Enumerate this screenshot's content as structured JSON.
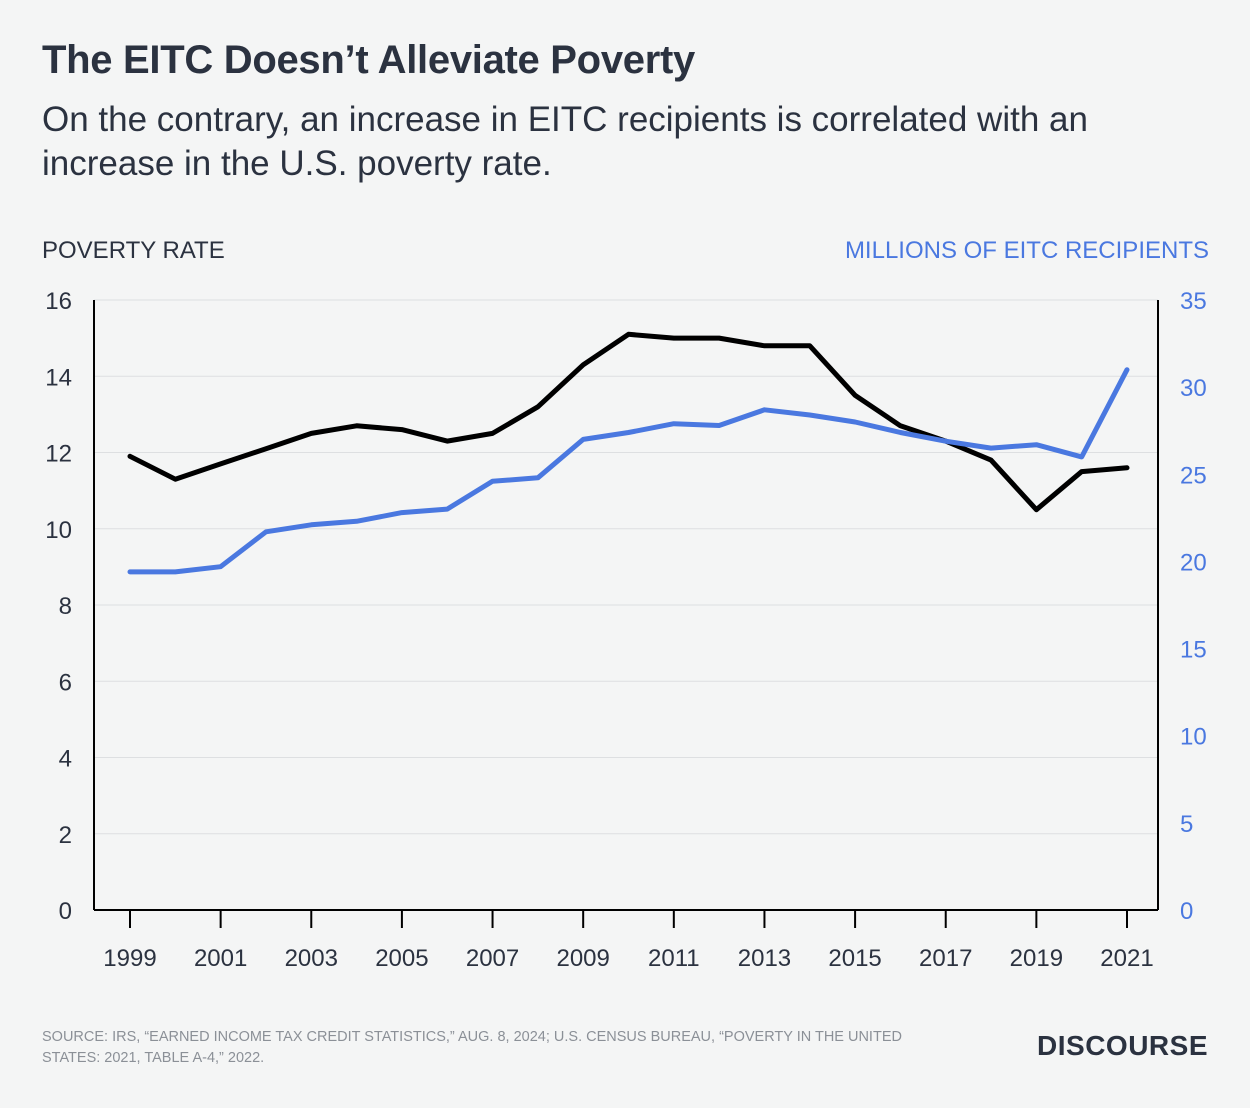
{
  "title": "The EITC Doesn’t Alleviate Poverty",
  "subtitle": "On the contrary, an increase in EITC recipients is correlated with an increase in the U.S. poverty rate.",
  "source": "SOURCE: IRS, “EARNED INCOME TAX CREDIT STATISTICS,” AUG. 8, 2024; U.S. CENSUS BUREAU, “POVERTY IN THE UNITED STATES: 2021, TABLE A-4,” 2022.",
  "brand": "DISCOURSE",
  "colors": {
    "poverty": "#000000",
    "eitc": "#4a78e0",
    "text": "#2b3240",
    "grid": "#dddfe1"
  },
  "chart_data": {
    "type": "line",
    "x": [
      1999,
      2000,
      2001,
      2002,
      2003,
      2004,
      2005,
      2006,
      2007,
      2008,
      2009,
      2010,
      2011,
      2012,
      2013,
      2014,
      2015,
      2016,
      2017,
      2018,
      2019,
      2020,
      2021
    ],
    "xticks": [
      "1999",
      "2001",
      "2003",
      "2005",
      "2007",
      "2009",
      "2011",
      "2013",
      "2015",
      "2017",
      "2019",
      "2021"
    ],
    "ylabel_left": "POVERTY RATE",
    "ylabel_right": "MILLIONS OF EITC RECIPIENTS",
    "ylim_left": [
      0,
      16
    ],
    "ylim_right": [
      0,
      35
    ],
    "yticks_left": [
      "0",
      "2",
      "4",
      "6",
      "8",
      "10",
      "12",
      "14",
      "16"
    ],
    "yticks_right": [
      "0",
      "5",
      "10",
      "15",
      "20",
      "25",
      "30",
      "35"
    ],
    "grid": true,
    "series": [
      {
        "axis": "left",
        "color": "#000000",
        "values": [
          11.9,
          11.3,
          11.7,
          12.1,
          12.5,
          12.7,
          12.6,
          12.3,
          12.5,
          13.2,
          14.3,
          15.1,
          15.0,
          15.0,
          14.8,
          14.8,
          13.5,
          12.7,
          12.3,
          11.8,
          10.5,
          11.5,
          11.6
        ]
      },
      {
        "axis": "right",
        "color": "#4a78e0",
        "values": [
          19.4,
          19.4,
          19.7,
          21.7,
          22.1,
          22.3,
          22.8,
          23.0,
          24.6,
          24.8,
          27.0,
          27.4,
          27.9,
          27.8,
          28.7,
          28.4,
          28.0,
          27.4,
          26.9,
          26.5,
          26.7,
          26.0,
          31.0
        ]
      }
    ]
  }
}
